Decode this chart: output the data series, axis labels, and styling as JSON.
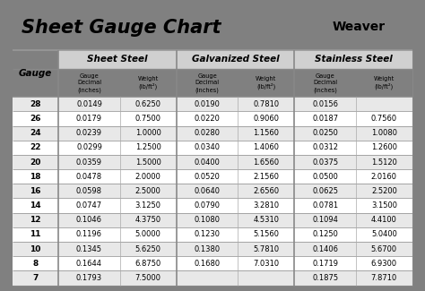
{
  "title": "Sheet Gauge Chart",
  "background_outer": "#808080",
  "background_inner": "#ffffff",
  "header_bg": "#d3d3d3",
  "row_bg_odd": "#e8e8e8",
  "row_bg_even": "#ffffff",
  "col_sections": [
    "Sheet Steel",
    "Galvanized Steel",
    "Stainless Steel"
  ],
  "gauges": [
    28,
    26,
    24,
    22,
    20,
    18,
    16,
    14,
    12,
    11,
    10,
    8,
    7
  ],
  "sheet_steel": [
    [
      "0.0149",
      "0.6250"
    ],
    [
      "0.0179",
      "0.7500"
    ],
    [
      "0.0239",
      "1.0000"
    ],
    [
      "0.0299",
      "1.2500"
    ],
    [
      "0.0359",
      "1.5000"
    ],
    [
      "0.0478",
      "2.0000"
    ],
    [
      "0.0598",
      "2.5000"
    ],
    [
      "0.0747",
      "3.1250"
    ],
    [
      "0.1046",
      "4.3750"
    ],
    [
      "0.1196",
      "5.0000"
    ],
    [
      "0.1345",
      "5.6250"
    ],
    [
      "0.1644",
      "6.8750"
    ],
    [
      "0.1793",
      "7.5000"
    ]
  ],
  "galvanized_steel": [
    [
      "0.0190",
      "0.7810"
    ],
    [
      "0.0220",
      "0.9060"
    ],
    [
      "0.0280",
      "1.1560"
    ],
    [
      "0.0340",
      "1.4060"
    ],
    [
      "0.0400",
      "1.6560"
    ],
    [
      "0.0520",
      "2.1560"
    ],
    [
      "0.0640",
      "2.6560"
    ],
    [
      "0.0790",
      "3.2810"
    ],
    [
      "0.1080",
      "4.5310"
    ],
    [
      "0.1230",
      "5.1560"
    ],
    [
      "0.1380",
      "5.7810"
    ],
    [
      "0.1680",
      "7.0310"
    ],
    [
      "",
      ""
    ]
  ],
  "stainless_steel": [
    [
      "0.0156",
      ""
    ],
    [
      "0.0187",
      "0.7560"
    ],
    [
      "0.0250",
      "1.0080"
    ],
    [
      "0.0312",
      "1.2600"
    ],
    [
      "0.0375",
      "1.5120"
    ],
    [
      "0.0500",
      "2.0160"
    ],
    [
      "0.0625",
      "2.5200"
    ],
    [
      "0.0781",
      "3.1500"
    ],
    [
      "0.1094",
      "4.4100"
    ],
    [
      "0.1250",
      "5.0400"
    ],
    [
      "0.1406",
      "5.6700"
    ],
    [
      "0.1719",
      "6.9300"
    ],
    [
      "0.1875",
      "7.8710"
    ]
  ]
}
